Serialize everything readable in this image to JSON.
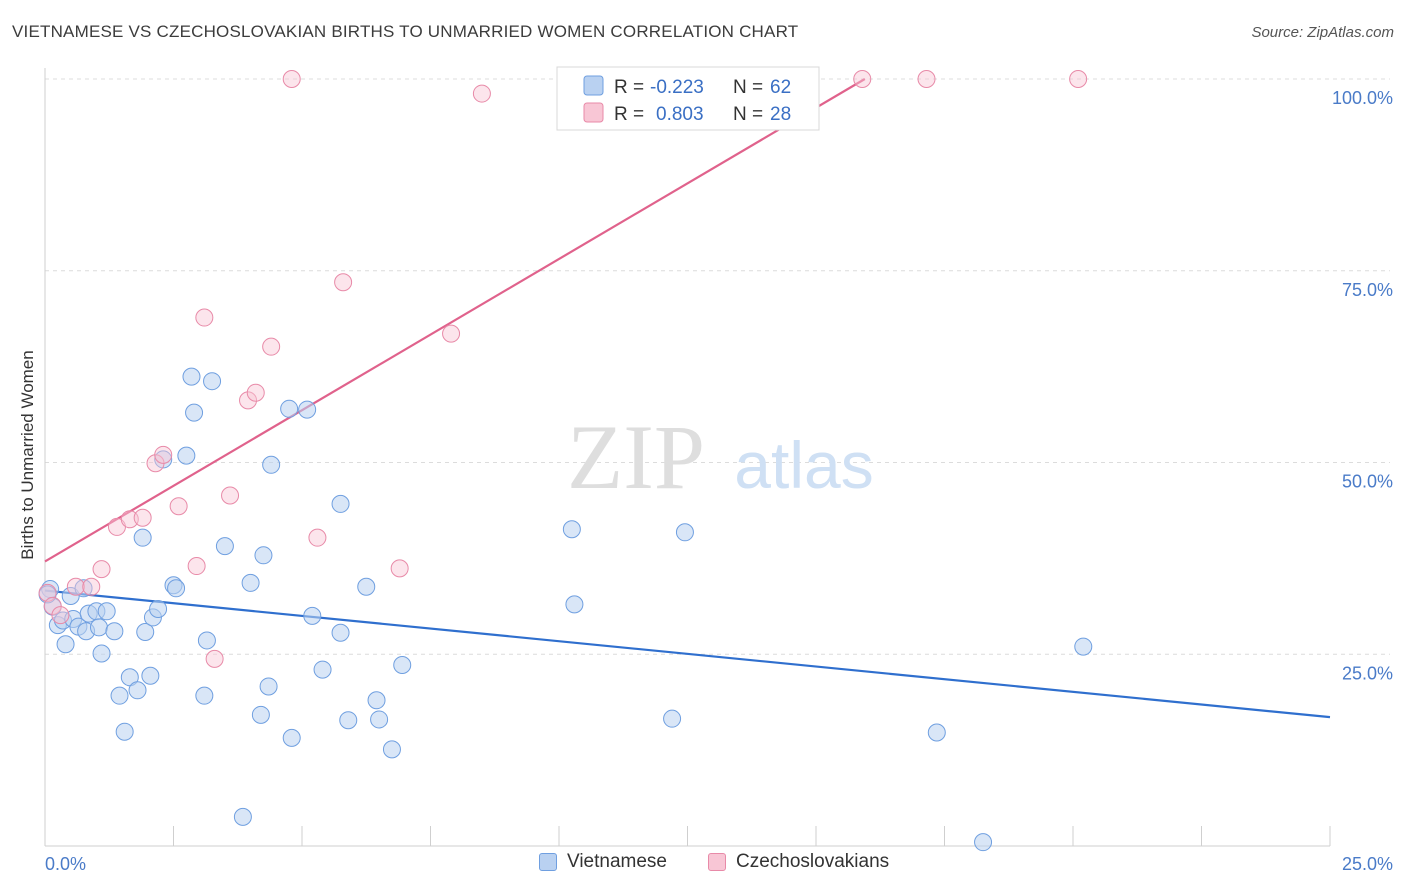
{
  "header": {
    "title": "VIETNAMESE VS CZECHOSLOVAKIAN BIRTHS TO UNMARRIED WOMEN CORRELATION CHART",
    "source": "Source: ZipAtlas.com"
  },
  "watermark": {
    "zip": "ZIP",
    "atlas": "atlas"
  },
  "colors": {
    "blue_fill": "#b9d1f1",
    "blue_stroke": "#6f9fe0",
    "blue_line": "#2f6fce",
    "pink_fill": "#f8c6d5",
    "pink_stroke": "#e88aa8",
    "pink_line": "#e0628c",
    "tick_text": "#4a7bc8"
  },
  "legend_box": {
    "rows": [
      {
        "r_label": "R =",
        "r_value": "-0.223",
        "n_label": "N =",
        "n_value": "62",
        "series": "blue"
      },
      {
        "r_label": "R =",
        "r_value": "0.803",
        "n_label": "N =",
        "n_value": "28",
        "series": "pink"
      }
    ]
  },
  "chart_data": {
    "type": "scatter",
    "title": "VIETNAMESE VS CZECHOSLOVAKIAN BIRTHS TO UNMARRIED WOMEN CORRELATION CHART",
    "xlabel": "",
    "ylabel": "Births to Unmarried Women",
    "xlim": [
      0,
      25
    ],
    "ylim": [
      0,
      100
    ],
    "x_tick_labels": [
      "0.0%",
      "25.0%"
    ],
    "y_tick_labels": [
      "100.0%",
      "75.0%",
      "50.0%",
      "25.0%"
    ],
    "y_tick_values": [
      100,
      75,
      50,
      25
    ],
    "grid": true,
    "legend_position": "bottom",
    "series": [
      {
        "name": "Vietnamese",
        "color": "blue",
        "R": -0.223,
        "N": 62,
        "trend": {
          "x": [
            0,
            25
          ],
          "y": [
            33.3,
            16.8
          ]
        },
        "points": [
          [
            0.1,
            33.5
          ],
          [
            0.15,
            31.2
          ],
          [
            0.25,
            28.8
          ],
          [
            0.35,
            29.4
          ],
          [
            0.4,
            26.3
          ],
          [
            0.5,
            32.6
          ],
          [
            0.55,
            29.6
          ],
          [
            0.65,
            28.6
          ],
          [
            0.8,
            28.0
          ],
          [
            0.75,
            33.6
          ],
          [
            0.85,
            30.3
          ],
          [
            1.0,
            30.6
          ],
          [
            1.05,
            28.5
          ],
          [
            1.1,
            25.1
          ],
          [
            1.2,
            30.6
          ],
          [
            1.35,
            28.0
          ],
          [
            1.45,
            19.6
          ],
          [
            1.55,
            14.9
          ],
          [
            1.65,
            22.0
          ],
          [
            1.8,
            20.3
          ],
          [
            1.9,
            40.2
          ],
          [
            1.95,
            27.9
          ],
          [
            2.05,
            22.2
          ],
          [
            2.1,
            29.8
          ],
          [
            2.2,
            30.9
          ],
          [
            2.3,
            50.4
          ],
          [
            2.5,
            34.0
          ],
          [
            2.55,
            33.6
          ],
          [
            2.75,
            50.9
          ],
          [
            2.85,
            61.2
          ],
          [
            2.9,
            56.5
          ],
          [
            3.1,
            19.6
          ],
          [
            3.15,
            26.8
          ],
          [
            3.25,
            60.6
          ],
          [
            3.5,
            39.1
          ],
          [
            3.85,
            3.8
          ],
          [
            4.0,
            34.3
          ],
          [
            4.2,
            17.1
          ],
          [
            4.25,
            37.9
          ],
          [
            4.35,
            20.8
          ],
          [
            4.4,
            49.7
          ],
          [
            4.75,
            57.0
          ],
          [
            4.8,
            14.1
          ],
          [
            5.1,
            56.9
          ],
          [
            5.2,
            30.0
          ],
          [
            5.4,
            23.0
          ],
          [
            5.75,
            27.8
          ],
          [
            5.75,
            44.6
          ],
          [
            5.9,
            16.4
          ],
          [
            6.25,
            33.8
          ],
          [
            6.45,
            19.0
          ],
          [
            6.5,
            16.5
          ],
          [
            6.75,
            12.6
          ],
          [
            6.95,
            23.6
          ],
          [
            10.25,
            41.3
          ],
          [
            10.3,
            31.5
          ],
          [
            12.2,
            16.6
          ],
          [
            12.45,
            40.9
          ],
          [
            17.35,
            14.8
          ],
          [
            18.25,
            0.5
          ],
          [
            20.2,
            26.0
          ],
          [
            0.05,
            32.8
          ]
        ]
      },
      {
        "name": "Czechoslovakians",
        "color": "pink",
        "R": 0.803,
        "N": 28,
        "trend": {
          "x": [
            0,
            15.95
          ],
          "y": [
            37.1,
            100
          ]
        },
        "points": [
          [
            0.05,
            33.0
          ],
          [
            0.15,
            31.3
          ],
          [
            0.3,
            30.1
          ],
          [
            0.6,
            33.8
          ],
          [
            0.9,
            33.8
          ],
          [
            1.1,
            36.1
          ],
          [
            1.4,
            41.6
          ],
          [
            1.65,
            42.6
          ],
          [
            1.9,
            42.8
          ],
          [
            2.15,
            49.9
          ],
          [
            2.3,
            51.0
          ],
          [
            2.6,
            44.3
          ],
          [
            2.95,
            36.5
          ],
          [
            3.1,
            68.9
          ],
          [
            3.3,
            24.4
          ],
          [
            3.6,
            45.7
          ],
          [
            3.95,
            58.1
          ],
          [
            4.1,
            59.1
          ],
          [
            4.4,
            65.1
          ],
          [
            4.8,
            100
          ],
          [
            5.3,
            40.2
          ],
          [
            5.8,
            73.5
          ],
          [
            6.9,
            36.2
          ],
          [
            7.9,
            66.8
          ],
          [
            8.5,
            98.1
          ],
          [
            15.9,
            100
          ],
          [
            17.15,
            100
          ],
          [
            20.1,
            100
          ]
        ]
      }
    ]
  },
  "bottom_legend": [
    {
      "label": "Vietnamese",
      "color": "blue"
    },
    {
      "label": "Czechoslovakians",
      "color": "pink"
    }
  ]
}
